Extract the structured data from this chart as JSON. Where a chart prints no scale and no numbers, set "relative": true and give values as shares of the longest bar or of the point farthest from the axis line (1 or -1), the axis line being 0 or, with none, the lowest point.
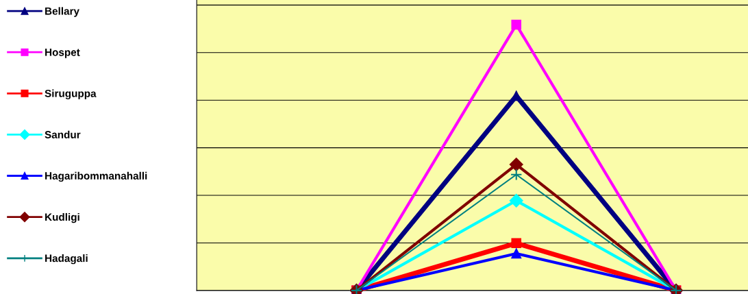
{
  "chart_data": {
    "type": "line",
    "relative": true,
    "categories": [
      null,
      null,
      null
    ],
    "grid": "y",
    "legend": "left",
    "series": [
      {
        "name": "Bellary",
        "color": "#000080",
        "marker": "triangle",
        "values": [
          0,
          0.732,
          0
        ]
      },
      {
        "name": "Hospet",
        "color": "#ff00ff",
        "marker": "square",
        "values": [
          0,
          1,
          0
        ]
      },
      {
        "name": "Siruguppa",
        "color": "#ff0000",
        "marker": "square",
        "values": [
          0,
          0.178,
          0
        ]
      },
      {
        "name": "Sandur",
        "color": "#00ffff",
        "marker": "diamond",
        "values": [
          0,
          0.338,
          0
        ]
      },
      {
        "name": "Hagaribommanahalli",
        "color": "#0000ff",
        "marker": "triangle",
        "values": [
          0,
          0.139,
          0
        ]
      },
      {
        "name": "Kudligi",
        "color": "#800000",
        "marker": "diamond",
        "values": [
          0,
          0.474,
          0
        ]
      },
      {
        "name": "Hadagali",
        "color": "#008080",
        "marker": "cross",
        "values": [
          0,
          0.436,
          0
        ]
      }
    ]
  }
}
